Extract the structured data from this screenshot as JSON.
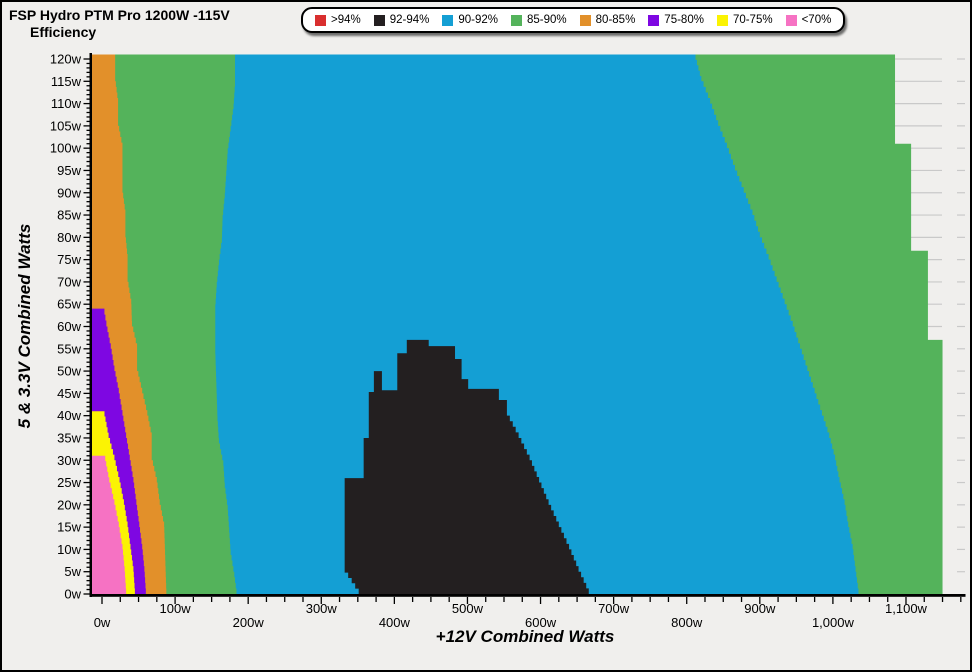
{
  "window": {
    "background": "#f0efed",
    "gridline_color": "#c9c9c9",
    "axis_color": "#000000"
  },
  "title": {
    "line1": "FSP Hydro PTM Pro 1200W -115V",
    "line2": "Efficiency"
  },
  "legend": {
    "items": [
      {
        "label": ">94%",
        "color": "#d92f2f"
      },
      {
        "label": "92-94%",
        "color": "#231f20"
      },
      {
        "label": "90-92%",
        "color": "#149fd4"
      },
      {
        "label": "85-90%",
        "color": "#54b35b"
      },
      {
        "label": "80-85%",
        "color": "#e2902a"
      },
      {
        "label": "75-80%",
        "color": "#7e07e2"
      },
      {
        "label": "70-75%",
        "color": "#fbf303"
      },
      {
        "label": "<70%",
        "color": "#f672c3"
      }
    ]
  },
  "chart_data": {
    "type": "heatmap",
    "title": "FSP Hydro PTM Pro 1200W -115V Efficiency",
    "xlabel": "+12V Combined Watts",
    "ylabel": "5 & 3.3V Combined Watts",
    "xlim": [
      -14,
      1181
    ],
    "ylim": [
      0,
      121
    ],
    "grid": "horizontal, every 5w, visible outside data area",
    "legend_position": "top-center",
    "x_ticks": [
      {
        "value": 0,
        "label": "0w"
      },
      {
        "value": 100,
        "label": "100w"
      },
      {
        "value": 200,
        "label": "200w"
      },
      {
        "value": 300,
        "label": "300w"
      },
      {
        "value": 400,
        "label": "400w"
      },
      {
        "value": 500,
        "label": "500w"
      },
      {
        "value": 600,
        "label": "600w"
      },
      {
        "value": 700,
        "label": "700w"
      },
      {
        "value": 800,
        "label": "800w"
      },
      {
        "value": 900,
        "label": "900w"
      },
      {
        "value": 1000,
        "label": "1,000w"
      },
      {
        "value": 1100,
        "label": "1,100w"
      }
    ],
    "x_minor_tick_step": 25,
    "x_minor_tick_max": 1175,
    "y_tick_step": 5,
    "y_minor_tick_step": 1,
    "y_tick_labels": [
      "0w",
      "5w",
      "10w",
      "15w",
      "20w",
      "25w",
      "30w",
      "35w",
      "40w",
      "45w",
      "50w",
      "55w",
      "60w",
      "65w",
      "70w",
      "75w",
      "80w",
      "85w",
      "90w",
      "95w",
      "100w",
      "105w",
      "110w",
      "115w",
      "120w"
    ],
    "regions": {
      "base": {
        "level": "85-90%",
        "comment": "green fills whole data area; right edge is max +12V load (~1200W total budget)",
        "right_edge": {
          "ys": [
            121,
            101,
            101,
            77,
            77,
            57,
            57,
            0
          ],
          "xs": [
            1085,
            1085,
            1107,
            1107,
            1130,
            1130,
            1150,
            1150
          ]
        }
      },
      "blue": {
        "level": "90-92%",
        "left": {
          "ys": [
            121,
            115,
            110,
            105,
            100,
            95,
            90,
            85,
            80,
            75,
            70,
            65,
            60,
            55,
            50,
            45,
            40,
            35,
            30,
            25,
            20,
            15,
            10,
            5,
            0
          ],
          "xs": [
            182,
            182,
            180,
            176,
            172,
            170,
            168,
            165,
            164,
            160,
            157,
            155,
            155,
            155,
            156,
            157,
            158,
            160,
            166,
            168,
            172,
            174,
            176,
            181,
            185
          ]
        },
        "right": {
          "ys": [
            121,
            115,
            110,
            105,
            100,
            95,
            90,
            85,
            80,
            75,
            70,
            65,
            60,
            55,
            50,
            45,
            40,
            35,
            30,
            25,
            20,
            15,
            10,
            5,
            0
          ],
          "xs": [
            810,
            820,
            832,
            843,
            855,
            866,
            878,
            890,
            900,
            912,
            923,
            934,
            945,
            955,
            965,
            975,
            985,
            995,
            1003,
            1009,
            1016,
            1021,
            1027,
            1031,
            1035
          ]
        }
      },
      "black": {
        "level": "92-94%",
        "polygon": [
          [
            356,
            0
          ],
          [
            332,
            6
          ],
          [
            332,
            26
          ],
          [
            358,
            26
          ],
          [
            358,
            35
          ],
          [
            365,
            35
          ],
          [
            365,
            45.3
          ],
          [
            372,
            45.3
          ],
          [
            372,
            50
          ],
          [
            383,
            50
          ],
          [
            383,
            45.7
          ],
          [
            404,
            45.7
          ],
          [
            404,
            54
          ],
          [
            417,
            54
          ],
          [
            417,
            57
          ],
          [
            447,
            57
          ],
          [
            447,
            55.6
          ],
          [
            483,
            55.6
          ],
          [
            483,
            52.7
          ],
          [
            492,
            52.7
          ],
          [
            492,
            48.2
          ],
          [
            501,
            48.2
          ],
          [
            501,
            46
          ],
          [
            543,
            46
          ],
          [
            543,
            43.5
          ],
          [
            554,
            43.5
          ],
          [
            554,
            40
          ],
          [
            570,
            35
          ],
          [
            585,
            30
          ],
          [
            598,
            25
          ],
          [
            611,
            20
          ],
          [
            625,
            15
          ],
          [
            639,
            10
          ],
          [
            652,
            5
          ],
          [
            666,
            0
          ]
        ]
      },
      "left_bands": [
        {
          "level": "80-85%",
          "right": {
            "ys": [
              121,
              115,
              110,
              105,
              100,
              95,
              90,
              85,
              80,
              75,
              70,
              65,
              60,
              55,
              50,
              45,
              40,
              35,
              30,
              25,
              20,
              15,
              10,
              5,
              0
            ],
            "xs": [
              18,
              18,
              22,
              22,
              28,
              28,
              28,
              32,
              32,
              35,
              35,
              40,
              41,
              48,
              48,
              55,
              62,
              68,
              68,
              75,
              79,
              85,
              86,
              87,
              88
            ]
          }
        },
        {
          "level": "75-80%",
          "right": {
            "ys": [
              64,
              60,
              55,
              50,
              45,
              40,
              35,
              30,
              25,
              20,
              15,
              10,
              5,
              0
            ],
            "xs": [
              2,
              6,
              12,
              17,
              23,
              28,
              33,
              38,
              43,
              47,
              51,
              55,
              58,
              60
            ]
          }
        },
        {
          "level": "70-75%",
          "right": {
            "ys": [
              41,
              35,
              30,
              25,
              20,
              15,
              10,
              5,
              0
            ],
            "xs": [
              2,
              9,
              17,
              24,
              30,
              35,
              39,
              43,
              45
            ]
          }
        },
        {
          "level": "<70%",
          "right": {
            "ys": [
              31,
              25,
              20,
              15,
              10,
              5,
              0
            ],
            "xs": [
              3,
              10,
              17,
              23,
              28,
              31,
              33
            ]
          }
        }
      ]
    }
  }
}
